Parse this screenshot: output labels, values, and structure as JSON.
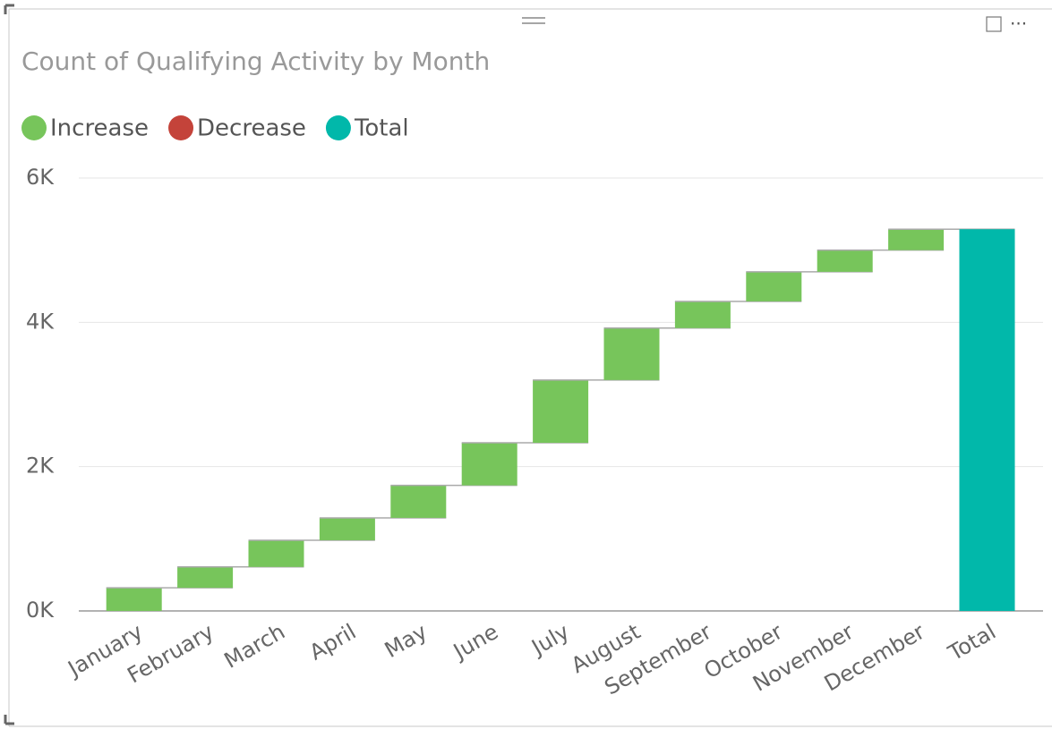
{
  "chart_data": {
    "type": "waterfall",
    "title": "Count of Qualifying Activity by Month",
    "legend": [
      {
        "name": "Increase",
        "color": "#77c55b"
      },
      {
        "name": "Decrease",
        "color": "#c4433a"
      },
      {
        "name": "Total",
        "color": "#01b8aa"
      }
    ],
    "categories": [
      "January",
      "February",
      "March",
      "April",
      "May",
      "June",
      "July",
      "August",
      "September",
      "October",
      "November",
      "December"
    ],
    "values": [
      320,
      290,
      370,
      310,
      450,
      590,
      870,
      720,
      370,
      410,
      300,
      290
    ],
    "total": {
      "label": "Total",
      "value": 5290
    },
    "ylim": [
      0,
      6000
    ],
    "yticks": [
      {
        "value": 0,
        "label": "0K"
      },
      {
        "value": 2000,
        "label": "2K"
      },
      {
        "value": 4000,
        "label": "4K"
      },
      {
        "value": 6000,
        "label": "6K"
      }
    ],
    "grid": true
  }
}
